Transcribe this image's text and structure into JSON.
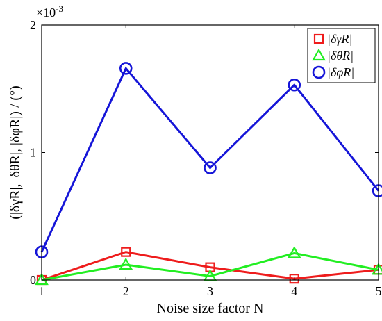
{
  "chart_data": {
    "type": "line",
    "x": [
      1,
      2,
      3,
      4,
      5
    ],
    "xlabel": "Noise size factor N",
    "ylabel": "(|δγR|, |δθR|, |δφR|) / (°)",
    "xlim": [
      1,
      5
    ],
    "ylim": [
      0,
      0.002
    ],
    "x_ticks": [
      "1",
      "2",
      "3",
      "4",
      "5"
    ],
    "y_ticks": [
      "0",
      "1",
      "2"
    ],
    "y_multiplier": "×10-3",
    "grid": false,
    "legend_position": "top-right",
    "series": [
      {
        "name": "|δγR|",
        "color": "#ee1c1c",
        "marker": "square",
        "values": [
          0.0,
          0.00022,
          0.0001,
          1e-05,
          8e-05
        ]
      },
      {
        "name": "|δθR|",
        "color": "#22ee22",
        "marker": "triangle",
        "values": [
          0.0,
          0.00012,
          3e-05,
          0.00021,
          8e-05
        ]
      },
      {
        "name": "|δφR|",
        "color": "#1515d8",
        "marker": "circle",
        "values": [
          0.00022,
          0.00166,
          0.00088,
          0.00153,
          0.0007
        ]
      }
    ]
  }
}
